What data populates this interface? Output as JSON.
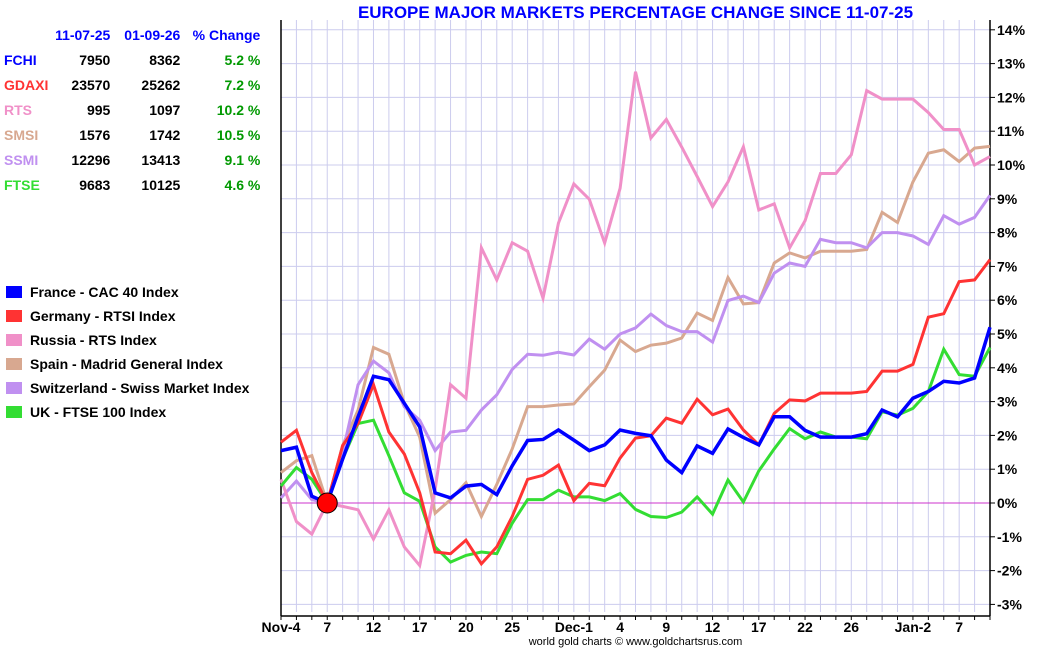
{
  "summary": {
    "headers": [
      "",
      "11-07-25",
      "01-09-26",
      "% Change"
    ],
    "rows": [
      {
        "symbol": "FCHI",
        "start": "7950",
        "end": "8362",
        "change": "5.2 %",
        "color": "#0000ff"
      },
      {
        "symbol": "GDAXI",
        "start": "23570",
        "end": "25262",
        "change": "7.2 %",
        "color": "#ff3333"
      },
      {
        "symbol": "RTS",
        "start": "995",
        "end": "1097",
        "change": "10.2 %",
        "color": "#f090c8"
      },
      {
        "symbol": "SMSI",
        "start": "1576",
        "end": "1742",
        "change": "10.5 %",
        "color": "#d8a890"
      },
      {
        "symbol": "SSMI",
        "start": "12296",
        "end": "13413",
        "change": "9.1 %",
        "color": "#c090f0"
      },
      {
        "symbol": "FTSE",
        "start": "9683",
        "end": "10125",
        "change": "4.6 %",
        "color": "#33dd33"
      }
    ]
  },
  "credit": "world gold charts © www.goldchartsrus.com",
  "chart_data": {
    "type": "line",
    "title": "EUROPE MAJOR MARKETS PERCENTAGE CHANGE SINCE 11-07-25",
    "xlabel": "",
    "ylabel": "",
    "ylim": [
      -3,
      14
    ],
    "yticks": [
      "-3%",
      "-2%",
      "-1%",
      "0%",
      "1%",
      "2%",
      "3%",
      "4%",
      "5%",
      "6%",
      "7%",
      "8%",
      "9%",
      "10%",
      "11%",
      "12%",
      "13%",
      "14%"
    ],
    "xtick_labels": [
      {
        "i": 0,
        "label": "Nov-4"
      },
      {
        "i": 3,
        "label": "7"
      },
      {
        "i": 6,
        "label": "12"
      },
      {
        "i": 9,
        "label": "17"
      },
      {
        "i": 12,
        "label": "20"
      },
      {
        "i": 15,
        "label": "25"
      },
      {
        "i": 19,
        "label": "Dec-1"
      },
      {
        "i": 22,
        "label": "4"
      },
      {
        "i": 25,
        "label": "9"
      },
      {
        "i": 28,
        "label": "12"
      },
      {
        "i": 31,
        "label": "17"
      },
      {
        "i": 34,
        "label": "22"
      },
      {
        "i": 37,
        "label": "26"
      },
      {
        "i": 41,
        "label": "Jan-2"
      },
      {
        "i": 44,
        "label": "7"
      }
    ],
    "base_index": 3,
    "grid": true,
    "legend_position": "left",
    "series": [
      {
        "name": "France - CAC 40 Index",
        "color": "#0000ff",
        "values": [
          1.55,
          1.65,
          0.2,
          0,
          1.3,
          2.55,
          3.75,
          3.65,
          2.95,
          2.25,
          0.3,
          0.15,
          0.5,
          0.55,
          0.25,
          1.1,
          1.85,
          1.88,
          2.16,
          1.86,
          1.55,
          1.72,
          2.16,
          2.06,
          1.99,
          1.27,
          0.9,
          1.69,
          1.47,
          2.19,
          1.94,
          1.72,
          2.55,
          2.55,
          2.15,
          1.95,
          1.95,
          1.95,
          2.05,
          2.75,
          2.55,
          3.1,
          3.3,
          3.6,
          3.55,
          3.7,
          5.2
        ]
      },
      {
        "name": "Germany - RTSI Index",
        "color": "#ff3333",
        "values": [
          1.8,
          2.15,
          0.9,
          0,
          1.7,
          2.35,
          3.5,
          2.1,
          1.45,
          0.3,
          -1.45,
          -1.5,
          -1.1,
          -1.8,
          -1.3,
          -0.4,
          0.7,
          0.82,
          1.12,
          0.07,
          0.58,
          0.51,
          1.33,
          1.92,
          1.99,
          2.51,
          2.36,
          3.07,
          2.61,
          2.78,
          2.16,
          1.72,
          2.65,
          3.05,
          3.02,
          3.25,
          3.25,
          3.25,
          3.3,
          3.9,
          3.9,
          4.1,
          5.5,
          5.6,
          6.55,
          6.6,
          7.2
        ]
      },
      {
        "name": "Russia - RTS Index",
        "color": "#f090c8",
        "values": [
          0.7,
          -0.55,
          -0.92,
          0,
          -0.1,
          -0.2,
          -1.07,
          -0.2,
          -1.3,
          -1.85,
          0.4,
          3.5,
          3.1,
          7.55,
          6.6,
          7.7,
          7.45,
          6.06,
          8.28,
          9.44,
          8.99,
          7.69,
          9.31,
          12.76,
          10.8,
          11.35,
          10.53,
          9.66,
          8.77,
          9.5,
          10.54,
          8.67,
          8.85,
          7.55,
          8.35,
          9.75,
          9.75,
          10.3,
          12.2,
          11.95,
          11.95,
          11.95,
          11.55,
          11.05,
          11.05,
          10.0,
          10.25
        ]
      },
      {
        "name": "Spain - Madrid General Index",
        "color": "#d8a890",
        "values": [
          0.9,
          1.25,
          1.4,
          0,
          1.7,
          2.75,
          4.6,
          4.4,
          2.95,
          1.95,
          -0.3,
          0.1,
          0.6,
          -0.4,
          0.55,
          1.6,
          2.85,
          2.85,
          2.9,
          2.93,
          3.44,
          3.93,
          4.82,
          4.48,
          4.67,
          4.73,
          4.88,
          5.62,
          5.4,
          6.67,
          5.89,
          5.93,
          7.1,
          7.4,
          7.25,
          7.45,
          7.45,
          7.45,
          7.5,
          8.6,
          8.3,
          9.5,
          10.35,
          10.45,
          10.1,
          10.5,
          10.55
        ]
      },
      {
        "name": "Switzerland - Swiss Market Index",
        "color": "#c090f0",
        "values": [
          0.15,
          0.65,
          0.1,
          0,
          1.5,
          3.5,
          4.2,
          3.85,
          2.85,
          2.45,
          1.55,
          2.1,
          2.15,
          2.75,
          3.2,
          3.95,
          4.4,
          4.37,
          4.46,
          4.38,
          4.85,
          4.55,
          5.0,
          5.18,
          5.59,
          5.25,
          5.07,
          5.07,
          4.76,
          5.99,
          6.12,
          5.93,
          6.8,
          7.1,
          7.0,
          7.8,
          7.7,
          7.7,
          7.55,
          8.0,
          8.0,
          7.9,
          7.65,
          8.5,
          8.25,
          8.45,
          9.1
        ]
      },
      {
        "name": "UK - FTSE 100 Index",
        "color": "#33dd33",
        "values": [
          0.5,
          1.05,
          0.7,
          0,
          1.3,
          2.35,
          2.45,
          1.4,
          0.3,
          0.05,
          -1.3,
          -1.75,
          -1.55,
          -1.45,
          -1.5,
          -0.6,
          0.1,
          0.1,
          0.38,
          0.18,
          0.18,
          0.07,
          0.28,
          -0.19,
          -0.4,
          -0.43,
          -0.27,
          0.18,
          -0.33,
          0.68,
          0.03,
          0.95,
          1.6,
          2.2,
          1.9,
          2.1,
          1.95,
          1.95,
          1.9,
          2.7,
          2.6,
          2.8,
          3.3,
          4.55,
          3.8,
          3.75,
          4.6
        ]
      }
    ]
  }
}
